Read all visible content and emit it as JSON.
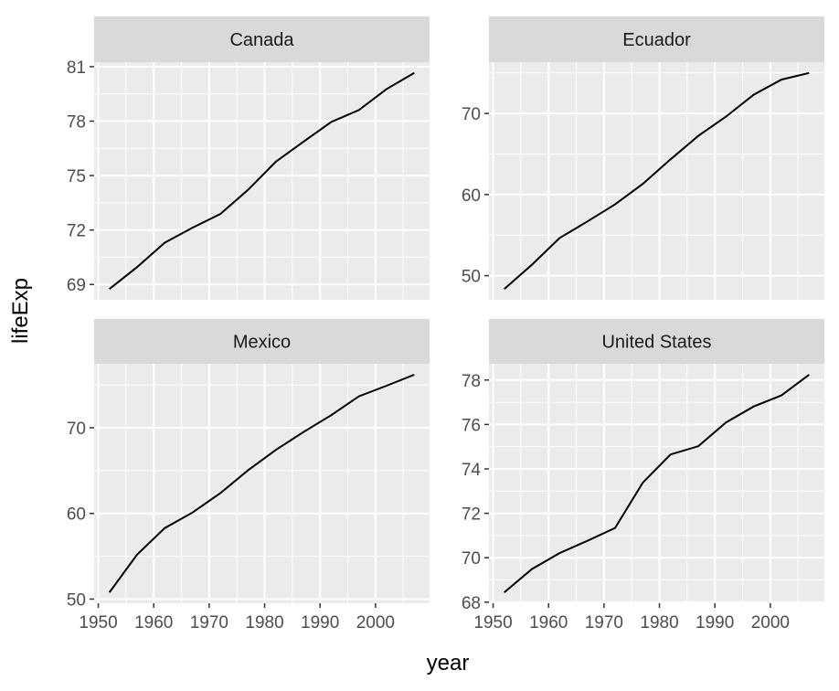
{
  "chart_data": {
    "type": "line",
    "facet_by": "country",
    "xlabel": "year",
    "ylabel": "lifeExp",
    "x": [
      1952,
      1957,
      1962,
      1967,
      1972,
      1977,
      1982,
      1987,
      1992,
      1997,
      2002,
      2007
    ],
    "x_ticks": [
      1950,
      1960,
      1970,
      1980,
      1990,
      2000
    ],
    "grid": true,
    "panels": [
      {
        "name": "Canada",
        "values": [
          68.75,
          69.96,
          71.3,
          72.13,
          72.88,
          74.21,
          75.76,
          76.86,
          77.95,
          78.61,
          79.77,
          80.653
        ],
        "y_ticks": [
          69,
          72,
          75,
          78,
          81
        ]
      },
      {
        "name": "Ecuador",
        "values": [
          48.357,
          51.356,
          54.64,
          56.678,
          58.796,
          61.31,
          64.342,
          67.231,
          69.613,
          72.312,
          74.173,
          74.994
        ],
        "y_ticks": [
          50,
          60,
          70
        ]
      },
      {
        "name": "Mexico",
        "values": [
          50.789,
          55.19,
          58.299,
          60.11,
          62.361,
          65.032,
          67.405,
          69.498,
          71.455,
          73.67,
          74.902,
          76.195
        ],
        "y_ticks": [
          50,
          60,
          70
        ]
      },
      {
        "name": "United States",
        "values": [
          68.44,
          69.49,
          70.21,
          70.76,
          71.34,
          73.38,
          74.65,
          75.02,
          76.09,
          76.81,
          77.31,
          78.242
        ],
        "y_ticks": [
          68,
          70,
          72,
          74,
          76,
          78
        ]
      }
    ]
  }
}
